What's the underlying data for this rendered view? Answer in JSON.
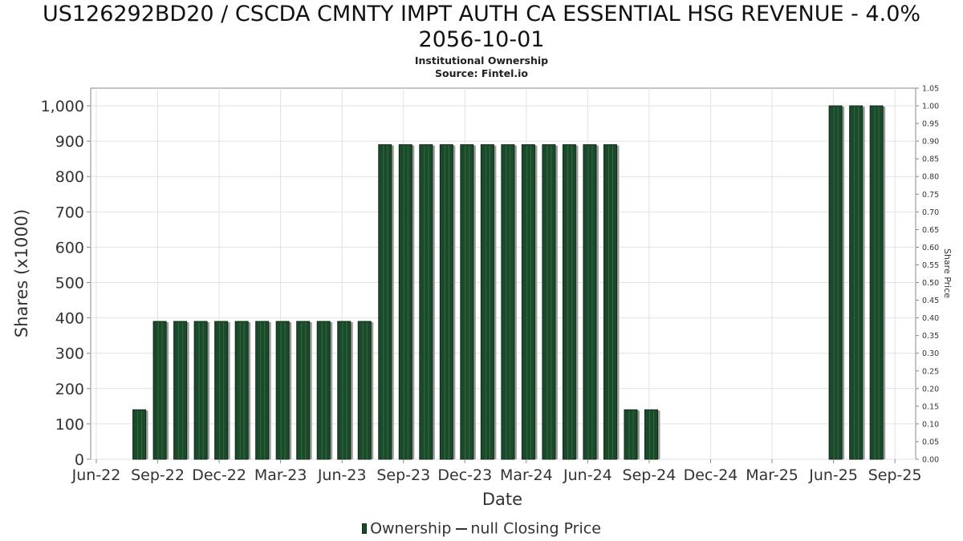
{
  "page": {
    "title_line1": "US126292BD20 / CSCDA CMNTY IMPT AUTH CA ESSENTIAL HSG REVENUE - 4.0%",
    "title_line2": "2056-10-01",
    "subtitle_line1": "Institutional Ownership",
    "subtitle_line2": "Source: Fintel.io"
  },
  "chart_data": {
    "type": "bar",
    "xlabel": "Date",
    "ylabel": "Shares (x1000)",
    "y2label": "Share Price",
    "ylim": [
      0,
      1050
    ],
    "y2lim": [
      0,
      1.05
    ],
    "yticks": [
      0,
      100,
      200,
      300,
      400,
      500,
      600,
      700,
      800,
      900,
      1000
    ],
    "ytick_labels": [
      "0",
      "100",
      "200",
      "300",
      "400",
      "500",
      "600",
      "700",
      "800",
      "900",
      "1,000"
    ],
    "y2ticks": [
      "0.00",
      "0.05",
      "0.10",
      "0.15",
      "0.20",
      "0.25",
      "0.30",
      "0.35",
      "0.40",
      "0.45",
      "0.50",
      "0.55",
      "0.60",
      "0.65",
      "0.70",
      "0.75",
      "0.80",
      "0.85",
      "0.90",
      "0.95",
      "1.00",
      "1.05"
    ],
    "xticks": [
      "Jun-22",
      "Sep-22",
      "Dec-22",
      "Mar-23",
      "Jun-23",
      "Sep-23",
      "Dec-23",
      "Mar-24",
      "Jun-24",
      "Sep-24",
      "Dec-24",
      "Mar-25",
      "Jun-25",
      "Sep-25"
    ],
    "grid": true,
    "legend_position": "bottom-center",
    "series": [
      {
        "name": "Ownership",
        "color": "#1b4a2a",
        "values": [
          140,
          390,
          390,
          390,
          390,
          390,
          390,
          390,
          390,
          390,
          390,
          390,
          890,
          890,
          890,
          890,
          890,
          890,
          890,
          890,
          890,
          890,
          890,
          890,
          140,
          140,
          1000,
          1000,
          1000
        ]
      },
      {
        "name": "null Closing Price",
        "color": "#333333",
        "values": []
      }
    ],
    "legend": [
      "Ownership",
      "null Closing Price"
    ]
  }
}
